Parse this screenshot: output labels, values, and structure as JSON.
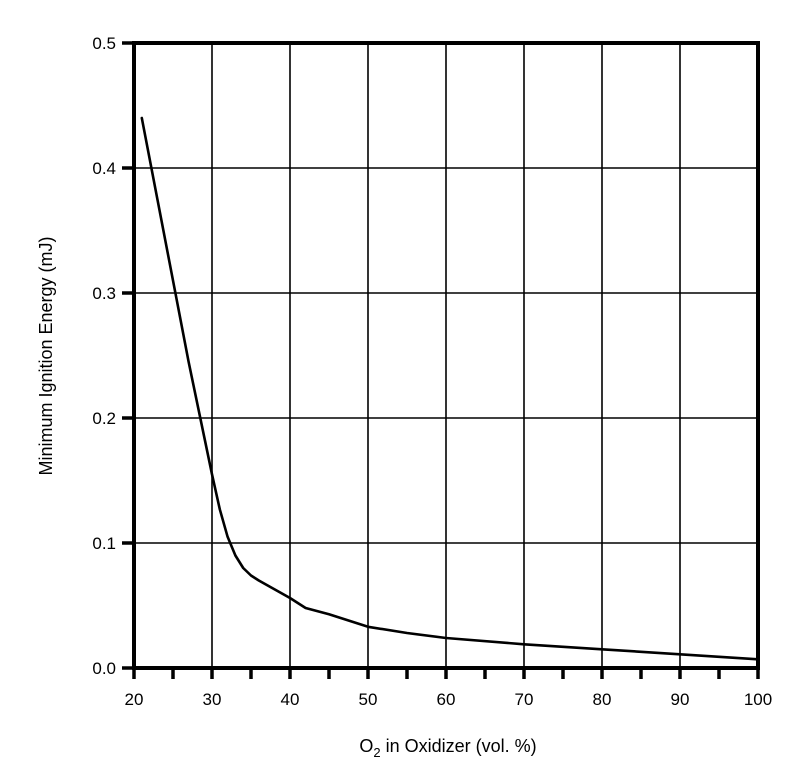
{
  "chart_data": {
    "type": "line",
    "title": "",
    "xlabel": {
      "prefix": "O",
      "subscript": "2",
      "suffix": " in Oxidizer (vol. %)"
    },
    "ylabel": "Minimum Ignition Energy (mJ)",
    "xlim": [
      20,
      100
    ],
    "ylim": [
      0,
      0.5
    ],
    "x_ticks": [
      20,
      30,
      40,
      50,
      60,
      70,
      80,
      90,
      100
    ],
    "x_tick_labels": [
      "20",
      "30",
      "40",
      "50",
      "60",
      "70",
      "80",
      "90",
      "100"
    ],
    "x_minor_ticks": [
      25,
      35,
      45,
      55,
      65,
      75,
      85,
      95
    ],
    "y_ticks": [
      0,
      0.1,
      0.2,
      0.3,
      0.4,
      0.5
    ],
    "y_tick_labels": [
      "0.0",
      "0.1",
      "0.2",
      "0.3",
      "0.4",
      "0.5"
    ],
    "grid": true,
    "colors": {
      "line": "#000000",
      "grid": "#000000",
      "frame": "#000000",
      "background": "#ffffff"
    },
    "series": [
      {
        "x": [
          21,
          23,
          25,
          27,
          29,
          30,
          31,
          32,
          33,
          34,
          35,
          36,
          38,
          40,
          42,
          45,
          50,
          55,
          60,
          70,
          80,
          90,
          100
        ],
        "y": [
          0.44,
          0.375,
          0.31,
          0.245,
          0.185,
          0.155,
          0.127,
          0.105,
          0.09,
          0.08,
          0.074,
          0.07,
          0.063,
          0.056,
          0.048,
          0.043,
          0.033,
          0.028,
          0.024,
          0.019,
          0.015,
          0.011,
          0.007
        ]
      }
    ]
  }
}
